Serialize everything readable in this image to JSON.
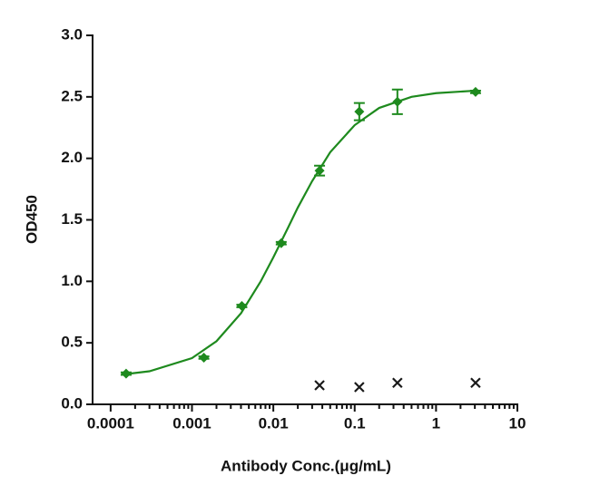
{
  "chart_data": {
    "type": "scatter",
    "x_label": "Antibody Conc.(μg/mL)",
    "y_label": "OD450",
    "xscale": "log",
    "x_minor_ticks": true,
    "xlim": [
      6e-05,
      10
    ],
    "ylim": [
      0,
      3
    ],
    "xticks": [
      0.0001,
      0.001,
      0.01,
      0.1,
      1,
      10
    ],
    "yticks": [
      {
        "value": 0,
        "label": "0.0"
      },
      0.5,
      {
        "value": 1,
        "label": "1.0"
      },
      1.5,
      {
        "value": 2,
        "label": "2.0"
      },
      2.5,
      {
        "value": 3,
        "label": "3.0"
      }
    ],
    "series": [
      {
        "color": "#1e8a1e",
        "marker": "diamond",
        "x": [
          0.000155,
          0.0014,
          0.0041,
          0.0125,
          0.037,
          0.114,
          0.335,
          3.06
        ],
        "values": [
          0.25,
          0.38,
          0.8,
          1.31,
          1.9,
          2.38,
          2.46,
          2.54
        ],
        "errors": [
          0.01,
          0.01,
          0.01,
          0.01,
          0.04,
          0.07,
          0.1,
          0.01
        ]
      },
      {
        "color": "#1a1a1a",
        "marker": "x",
        "x": [
          0.037,
          0.114,
          0.335,
          3.06
        ],
        "values": [
          0.155,
          0.14,
          0.175,
          0.175
        ]
      },
      {
        "color": "#1e8a1e",
        "marker": "line",
        "x": [
          0.00015,
          0.0003,
          0.001,
          0.002,
          0.004,
          0.007,
          0.01,
          0.015,
          0.02,
          0.03,
          0.05,
          0.1,
          0.2,
          0.5,
          1,
          3
        ],
        "values": [
          0.245,
          0.269,
          0.376,
          0.513,
          0.74,
          1.0,
          1.195,
          1.43,
          1.6,
          1.815,
          2.05,
          2.27,
          2.41,
          2.5,
          2.53,
          2.55
        ]
      }
    ]
  }
}
